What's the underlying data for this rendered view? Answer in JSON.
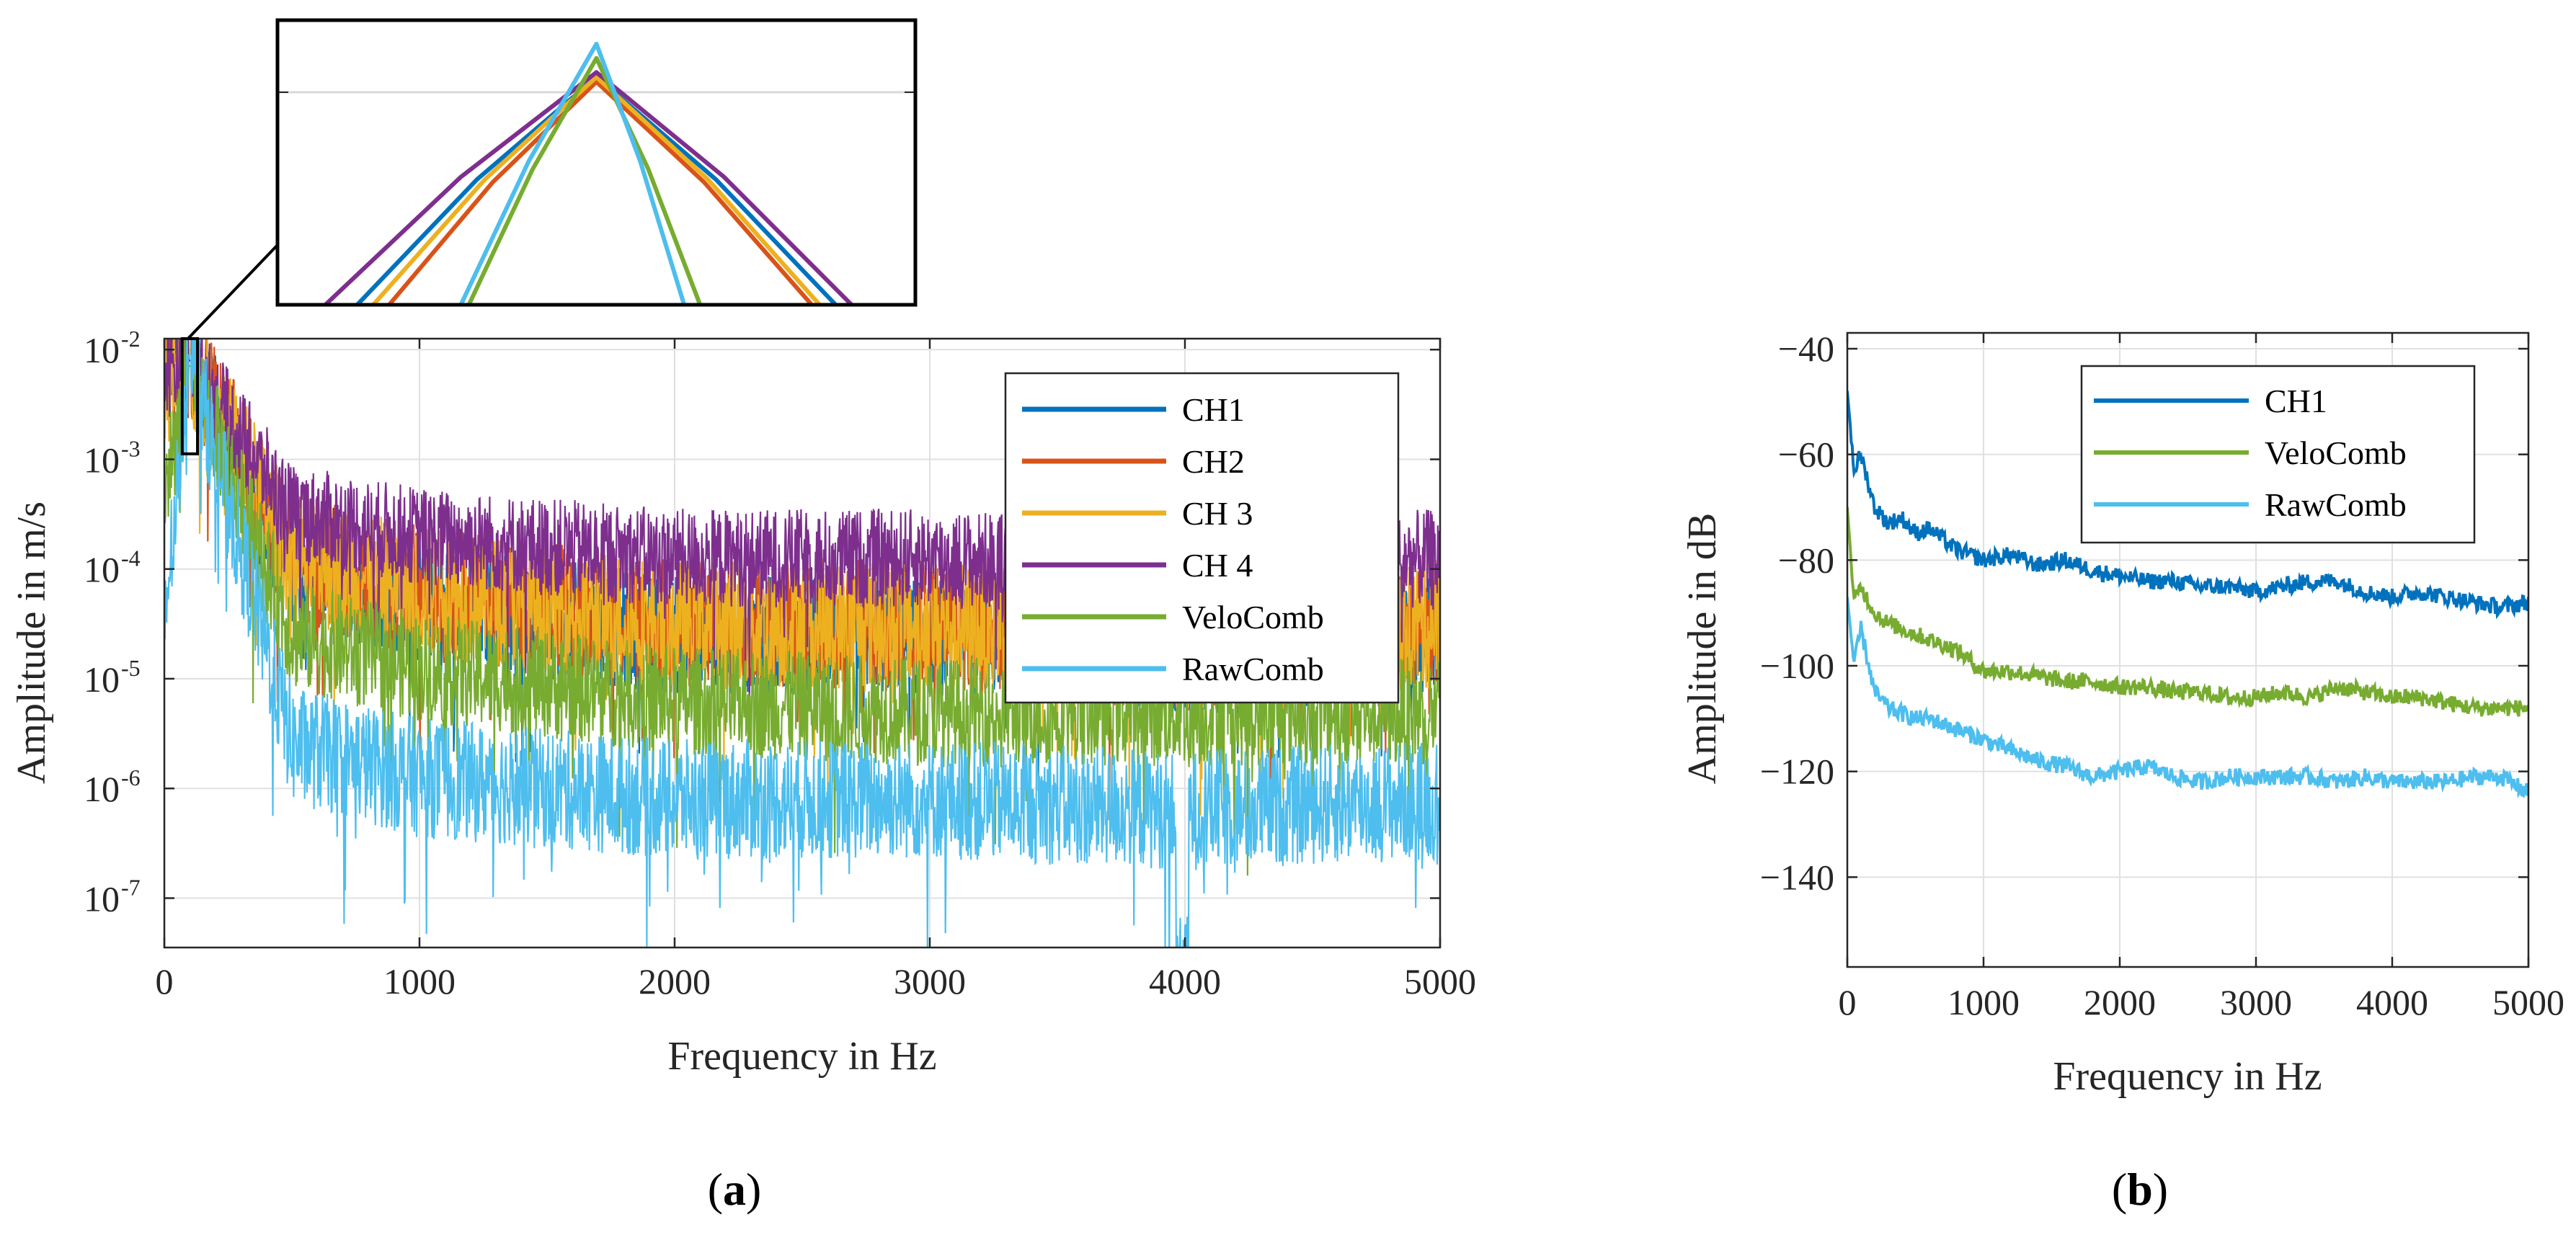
{
  "chart_data": [
    {
      "panel": "a",
      "panel_label": {
        "open": "(",
        "letter": "a",
        "close": ")"
      },
      "type": "line",
      "xlabel": "Frequency in Hz",
      "ylabel": "Amplitude in m/s",
      "xlim": [
        0,
        5000
      ],
      "ylim_log10": [
        -7.45,
        -1.9
      ],
      "yscale": "log",
      "xticks": [
        0,
        1000,
        2000,
        3000,
        4000,
        5000
      ],
      "xtick_labels": [
        "0",
        "1000",
        "2000",
        "3000",
        "4000",
        "5000"
      ],
      "yticks_exp": [
        -7,
        -6,
        -5,
        -4,
        -3,
        -2
      ],
      "ytick_base": "10",
      "ytick_exp_labels": [
        "-7",
        "-6",
        "-5",
        "-4",
        "-3",
        "-2"
      ],
      "grid": true,
      "legend_position": "top-right",
      "series": [
        {
          "name": "CH1",
          "color": "#0072BD",
          "sample_x": [
            0,
            100,
            500,
            1000,
            2000,
            3000,
            4000,
            5000
          ],
          "sample_log10": [
            -2.2,
            -2.1,
            -4.0,
            -4.3,
            -4.6,
            -4.6,
            -4.8,
            -4.6
          ]
        },
        {
          "name": "CH2",
          "color": "#D95319",
          "sample_x": [
            0,
            100,
            500,
            1000,
            2000,
            3000,
            4000,
            5000
          ],
          "sample_log10": [
            -2.3,
            -2.1,
            -3.9,
            -4.2,
            -4.5,
            -4.5,
            -4.7,
            -4.5
          ]
        },
        {
          "name": "CH 3",
          "color": "#EDB120",
          "sample_x": [
            0,
            100,
            500,
            1000,
            2000,
            3000,
            4000,
            5000
          ],
          "sample_log10": [
            -2.3,
            -2.1,
            -3.9,
            -4.2,
            -4.5,
            -4.5,
            -4.7,
            -4.5
          ]
        },
        {
          "name": "CH 4",
          "color": "#7E2F8E",
          "sample_x": [
            0,
            100,
            500,
            1000,
            2000,
            3000,
            4000,
            5000
          ],
          "sample_log10": [
            -2.2,
            -2.1,
            -3.5,
            -3.7,
            -3.9,
            -3.9,
            -4.0,
            -3.9
          ]
        },
        {
          "name": "VeloComb",
          "color": "#77AC30",
          "sample_x": [
            0,
            100,
            500,
            1000,
            2000,
            3000,
            4000,
            5000
          ],
          "sample_log10": [
            -3.3,
            -2.15,
            -4.6,
            -4.9,
            -5.2,
            -5.3,
            -5.3,
            -5.3
          ]
        },
        {
          "name": "RawComb",
          "color": "#4DBEEE",
          "sample_x": [
            0,
            100,
            500,
            1000,
            2000,
            3000,
            4000,
            5000
          ],
          "sample_log10": [
            -4.5,
            -2.05,
            -5.6,
            -5.9,
            -6.1,
            -6.1,
            -6.2,
            -6.1
          ]
        }
      ],
      "inset": {
        "description": "zoom of peak near 100 Hz",
        "xlim": [
          96,
          104
        ],
        "ylim_log10": [
          -2.6,
          -2.0
        ],
        "peak_x": 100,
        "series": [
          {
            "name": "CH1",
            "left": [
              97.0,
              -2.6
            ],
            "peak": [
              100,
              -2.12
            ],
            "right": [
              103.0,
              -2.6
            ]
          },
          {
            "name": "CH2",
            "left": [
              97.4,
              -2.6
            ],
            "peak": [
              100,
              -2.13
            ],
            "right": [
              102.7,
              -2.6
            ]
          },
          {
            "name": "CH 3",
            "left": [
              97.2,
              -2.6
            ],
            "peak": [
              100,
              -2.12
            ],
            "right": [
              102.8,
              -2.6
            ]
          },
          {
            "name": "CH 4",
            "left": [
              96.6,
              -2.6
            ],
            "peak": [
              100,
              -2.11
            ],
            "right": [
              103.2,
              -2.6
            ]
          },
          {
            "name": "VeloComb",
            "left": [
              98.4,
              -2.6
            ],
            "peak": [
              100,
              -2.08
            ],
            "right": [
              101.3,
              -2.6
            ]
          },
          {
            "name": "RawComb",
            "left": [
              98.3,
              -2.6
            ],
            "peak": [
              100,
              -2.05
            ],
            "right": [
              101.1,
              -2.6
            ]
          }
        ]
      }
    },
    {
      "panel": "b",
      "panel_label": {
        "open": "(",
        "letter": "b",
        "close": ")"
      },
      "type": "line",
      "xlabel": "Frequency in Hz",
      "ylabel": "Amplitude in dB",
      "xlim": [
        0,
        5000
      ],
      "ylim": [
        -157,
        -37
      ],
      "xticks": [
        0,
        1000,
        2000,
        3000,
        4000,
        5000
      ],
      "xtick_labels": [
        "0",
        "1000",
        "2000",
        "3000",
        "4000",
        "5000"
      ],
      "yticks": [
        -140,
        -120,
        -100,
        -80,
        -60,
        -40
      ],
      "ytick_labels": [
        "−140",
        "−120",
        "−100",
        "−80",
        "−60",
        "−40"
      ],
      "grid": true,
      "legend_position": "top-right",
      "series": [
        {
          "name": "CH1",
          "color": "#0072BD",
          "x": [
            0,
            50,
            100,
            200,
            300,
            400,
            500,
            600,
            800,
            1000,
            1200,
            1400,
            1600,
            1800,
            2000,
            2200,
            2400,
            2600,
            2800,
            3000,
            3200,
            3400,
            3600,
            3800,
            4000,
            4200,
            4400,
            4600,
            4800,
            5000
          ],
          "y": [
            -48,
            -63,
            -60,
            -70,
            -73,
            -72,
            -75,
            -74,
            -78,
            -80,
            -79,
            -81,
            -80,
            -82,
            -83,
            -84,
            -84,
            -85,
            -85,
            -86,
            -85,
            -84,
            -84,
            -86,
            -87,
            -86,
            -87,
            -88,
            -89,
            -88
          ]
        },
        {
          "name": "VeloComb",
          "color": "#77AC30",
          "x": [
            0,
            50,
            100,
            200,
            300,
            400,
            500,
            600,
            800,
            1000,
            1200,
            1400,
            1600,
            1800,
            2000,
            2200,
            2400,
            2600,
            2800,
            3000,
            3200,
            3400,
            3600,
            3800,
            4000,
            4200,
            4400,
            4600,
            4800,
            5000
          ],
          "y": [
            -70,
            -88,
            -85,
            -90,
            -92,
            -93,
            -94,
            -95,
            -97,
            -101,
            -101,
            -102,
            -103,
            -103,
            -104,
            -104,
            -105,
            -105,
            -106,
            -106,
            -105,
            -106,
            -104,
            -105,
            -106,
            -106,
            -107,
            -108,
            -108,
            -108
          ]
        },
        {
          "name": "RawComb",
          "color": "#4DBEEE",
          "x": [
            0,
            50,
            100,
            200,
            300,
            400,
            500,
            600,
            800,
            1000,
            1200,
            1400,
            1600,
            1800,
            2000,
            2200,
            2400,
            2600,
            2800,
            3000,
            3200,
            3400,
            3600,
            3800,
            4000,
            4200,
            4400,
            4600,
            4800,
            5000
          ],
          "y": [
            -87,
            -100,
            -93,
            -105,
            -108,
            -109,
            -110,
            -110,
            -112,
            -114,
            -116,
            -118,
            -119,
            -121,
            -120,
            -119,
            -121,
            -122,
            -121,
            -121,
            -121,
            -121,
            -122,
            -121,
            -122,
            -122,
            -122,
            -121,
            -121,
            -124
          ]
        }
      ]
    }
  ]
}
